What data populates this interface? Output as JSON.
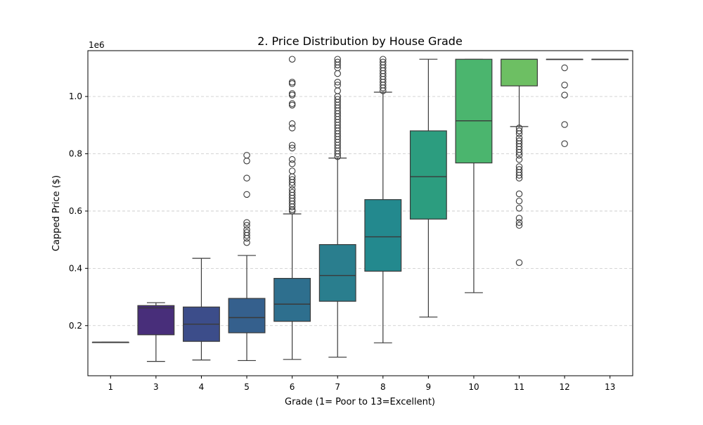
{
  "chart_data": {
    "type": "box",
    "title": "2. Price Distribution by House Grade",
    "xlabel": "Grade (1= Poor to 13=Excellent)",
    "ylabel": "Capped Price ($)",
    "y_offset_label": "1e6",
    "y_scale_factor": 1000000,
    "ylim": [
      0.025,
      1.16
    ],
    "yticks": [
      0.2,
      0.4,
      0.6,
      0.8,
      1.0
    ],
    "ytick_labels": [
      "0.2",
      "0.4",
      "0.6",
      "0.8",
      "1.0"
    ],
    "grid": "horizontal-dashed",
    "categories": [
      "1",
      "3",
      "4",
      "5",
      "6",
      "7",
      "8",
      "9",
      "10",
      "11",
      "12",
      "13"
    ],
    "colors": [
      "#440154",
      "#482475",
      "#414487",
      "#355f8d",
      "#2a788e",
      "#21918c",
      "#22a884",
      "#44bf70",
      "#7ad151",
      "#bddf26",
      "#fde725",
      "#fde725"
    ],
    "box_colors": [
      "#462b7a",
      "#482e7a",
      "#3c4d8a",
      "#35608d",
      "#2e6f8e",
      "#2a7e8e",
      "#23898e",
      "#2c9d7f",
      "#4bb56e",
      "#6dbf63",
      "#9fd24a",
      "#bcd73e"
    ],
    "boxes": [
      {
        "grade": "1",
        "whislo": 0.142,
        "q1": 0.142,
        "med": 0.142,
        "q3": 0.142,
        "whishi": 0.142,
        "fliers": []
      },
      {
        "grade": "3",
        "whislo": 0.075,
        "q1": 0.168,
        "med": 0.262,
        "q3": 0.27,
        "whishi": 0.28,
        "fliers": []
      },
      {
        "grade": "4",
        "whislo": 0.08,
        "q1": 0.145,
        "med": 0.205,
        "q3": 0.265,
        "whishi": 0.435,
        "fliers": []
      },
      {
        "grade": "5",
        "whislo": 0.078,
        "q1": 0.175,
        "med": 0.228,
        "q3": 0.295,
        "whishi": 0.445,
        "fliers": [
          0.49,
          0.505,
          0.515,
          0.525,
          0.535,
          0.55,
          0.56,
          0.658,
          0.715,
          0.775,
          0.795
        ]
      },
      {
        "grade": "6",
        "whislo": 0.082,
        "q1": 0.215,
        "med": 0.275,
        "q3": 0.365,
        "whishi": 0.59,
        "fliers": [
          0.6,
          0.605,
          0.615,
          0.625,
          0.635,
          0.645,
          0.655,
          0.665,
          0.675,
          0.69,
          0.7,
          0.71,
          0.72,
          0.74,
          0.765,
          0.78,
          0.82,
          0.83,
          0.89,
          0.905,
          0.97,
          0.975,
          1.005,
          1.01,
          1.045,
          1.05,
          1.13
        ]
      },
      {
        "grade": "7",
        "whislo": 0.09,
        "q1": 0.285,
        "med": 0.375,
        "q3": 0.483,
        "whishi": 0.785,
        "fliers": [
          0.79,
          0.8,
          0.81,
          0.82,
          0.83,
          0.84,
          0.85,
          0.86,
          0.87,
          0.88,
          0.89,
          0.9,
          0.91,
          0.92,
          0.93,
          0.94,
          0.95,
          0.96,
          0.97,
          0.98,
          0.99,
          1.0,
          1.02,
          1.04,
          1.05,
          1.08,
          1.1,
          1.11,
          1.12,
          1.13
        ]
      },
      {
        "grade": "8",
        "whislo": 0.14,
        "q1": 0.39,
        "med": 0.51,
        "q3": 0.64,
        "whishi": 1.015,
        "fliers": [
          1.02,
          1.03,
          1.04,
          1.05,
          1.06,
          1.07,
          1.08,
          1.09,
          1.1,
          1.11,
          1.12,
          1.13
        ]
      },
      {
        "grade": "9",
        "whislo": 0.23,
        "q1": 0.572,
        "med": 0.72,
        "q3": 0.88,
        "whishi": 1.13,
        "fliers": []
      },
      {
        "grade": "10",
        "whislo": 0.315,
        "q1": 0.768,
        "med": 0.915,
        "q3": 1.13,
        "whishi": 1.13,
        "fliers": []
      },
      {
        "grade": "11",
        "whislo": 0.895,
        "q1": 1.037,
        "med": 1.13,
        "q3": 1.13,
        "whishi": 1.13,
        "fliers": [
          0.42,
          0.55,
          0.56,
          0.575,
          0.61,
          0.635,
          0.66,
          0.715,
          0.725,
          0.735,
          0.745,
          0.755,
          0.78,
          0.795,
          0.805,
          0.815,
          0.825,
          0.835,
          0.845,
          0.855,
          0.87,
          0.88,
          0.89
        ]
      },
      {
        "grade": "12",
        "whislo": 1.13,
        "q1": 1.13,
        "med": 1.13,
        "q3": 1.13,
        "whishi": 1.13,
        "fliers": [
          0.835,
          0.902,
          1.005,
          1.04,
          1.1
        ]
      },
      {
        "grade": "13",
        "whislo": 1.13,
        "q1": 1.13,
        "med": 1.13,
        "q3": 1.13,
        "whishi": 1.13,
        "fliers": []
      }
    ]
  }
}
